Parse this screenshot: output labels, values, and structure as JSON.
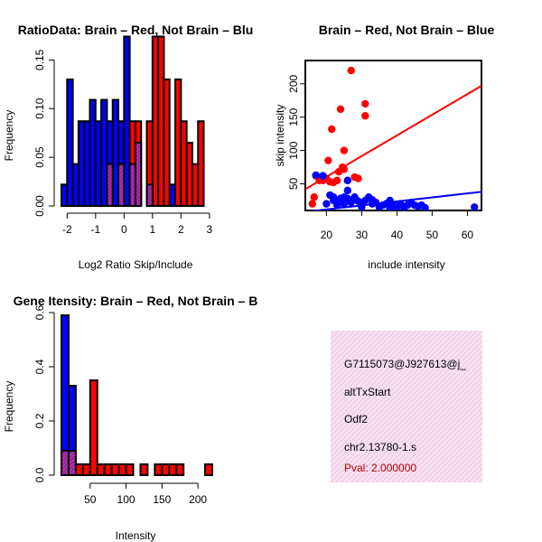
{
  "colors": {
    "brain": "#ff0000",
    "not_brain": "#0000ff",
    "overlap": "#9a1f9a",
    "panel_bg": "#f3d3ea"
  },
  "chart_data": [
    {
      "type": "bar",
      "title": "RatioData: Brain – Red, Not Brain – Blu",
      "xlabel": "Log2 Ratio Skip/Include",
      "ylabel": "Frequency",
      "xlim": [
        -2.2,
        3.1
      ],
      "ylim": [
        0,
        0.18
      ],
      "xticks": [
        "-2",
        "-1",
        "0",
        "1",
        "2",
        "3"
      ],
      "xtick_values": [
        -2,
        -1,
        0,
        1,
        2,
        3
      ],
      "yticks": [
        "0.00",
        "0.05",
        "0.10",
        "0.15"
      ],
      "ytick_values": [
        0,
        0.05,
        0.1,
        0.15
      ],
      "bin_width": 0.2,
      "series": [
        {
          "name": "Not Brain",
          "color": "blue",
          "bin_starts": [
            -2.2,
            -2.0,
            -1.8,
            -1.6,
            -1.4,
            -1.2,
            -1.0,
            -0.8,
            -0.6,
            -0.4,
            -0.2,
            0.0,
            0.2,
            0.4,
            1.6
          ],
          "values": [
            0.022,
            0.13,
            0.043,
            0.087,
            0.087,
            0.109,
            0.087,
            0.109,
            0.087,
            0.109,
            0.087,
            0.174,
            0.043,
            0.022,
            0.022
          ]
        },
        {
          "name": "Brain",
          "color": "red",
          "bin_starts": [
            -0.2,
            0.2,
            0.4,
            0.8,
            1.0,
            1.2,
            1.4,
            1.8,
            2.0,
            2.2,
            2.4,
            2.6
          ],
          "values": [
            0.022,
            0.087,
            0.087,
            0.087,
            0.174,
            0.174,
            0.13,
            0.13,
            0.087,
            0.065,
            0.043,
            0.087
          ]
        },
        {
          "name": "Overlap",
          "color": "purple",
          "bin_starts": [
            -0.6,
            -0.2,
            0.2,
            0.4,
            0.8
          ],
          "values": [
            0.043,
            0.043,
            0.043,
            0.065,
            0.022
          ]
        }
      ]
    },
    {
      "type": "scatter",
      "title": "Brain – Red, Not Brain – Blue",
      "xlabel": "include intensity",
      "ylabel": "skip intensity",
      "xlim": [
        14,
        64
      ],
      "ylim": [
        10,
        235
      ],
      "xticks": [
        "20",
        "30",
        "40",
        "50",
        "60"
      ],
      "xtick_values": [
        20,
        30,
        40,
        50,
        60
      ],
      "yticks": [
        "50",
        "100",
        "150",
        "200"
      ],
      "ytick_values": [
        50,
        100,
        150,
        200
      ],
      "series": [
        {
          "name": "Brain",
          "color": "red",
          "x": [
            16,
            17,
            19,
            20,
            20.5,
            21,
            21.5,
            22,
            23,
            23.5,
            24,
            24.5,
            25,
            25,
            26,
            27,
            28,
            29,
            31,
            31,
            16.5,
            18
          ],
          "y": [
            20,
            62,
            55,
            58,
            85,
            53,
            132,
            52,
            55,
            68,
            162,
            75,
            100,
            72,
            55,
            220,
            60,
            58,
            170,
            152,
            30,
            55
          ],
          "fit": [
            [
              14,
              42
            ],
            [
              64,
              197
            ]
          ]
        },
        {
          "name": "Not Brain",
          "color": "blue",
          "x": [
            17,
            19,
            20,
            21,
            22,
            22,
            23,
            24,
            25,
            25,
            26,
            26,
            27,
            28,
            29,
            30,
            31,
            32,
            33,
            34,
            35,
            36,
            37,
            38,
            38,
            39,
            40,
            41,
            42,
            43,
            44,
            45,
            46,
            47,
            48,
            62,
            26,
            24,
            30,
            33
          ],
          "y": [
            63,
            62,
            20,
            33,
            25,
            30,
            18,
            28,
            30,
            20,
            40,
            55,
            22,
            30,
            24,
            18,
            25,
            30,
            20,
            22,
            15,
            18,
            20,
            12,
            25,
            18,
            15,
            20,
            14,
            18,
            22,
            18,
            16,
            18,
            14,
            15,
            28,
            22,
            15,
            26
          ],
          "fit": [
            [
              14,
              8
            ],
            [
              64,
              38
            ]
          ]
        }
      ]
    },
    {
      "type": "bar",
      "title": "Gene Itensity: Brain – Red, Not Brain – B",
      "xlabel": "Intensity",
      "ylabel": "Frequency",
      "xlim": [
        10,
        220
      ],
      "ylim": [
        0,
        0.64
      ],
      "xticks": [
        "50",
        "100",
        "150",
        "200"
      ],
      "xtick_values": [
        50,
        100,
        150,
        200
      ],
      "yticks": [
        "0.0",
        "0.2",
        "0.4",
        "0.6"
      ],
      "ytick_values": [
        0,
        0.2,
        0.4,
        0.6
      ],
      "bin_width": 10,
      "series": [
        {
          "name": "Not Brain",
          "color": "blue",
          "bin_starts": [
            10,
            20,
            30,
            40
          ],
          "values": [
            0.59,
            0.33,
            0.04,
            0.04
          ]
        },
        {
          "name": "Brain",
          "color": "red",
          "bin_starts": [
            30,
            40,
            50,
            60,
            70,
            80,
            90,
            100,
            120,
            140,
            150,
            160,
            170,
            210
          ],
          "values": [
            0.04,
            0.04,
            0.35,
            0.04,
            0.04,
            0.04,
            0.04,
            0.04,
            0.04,
            0.04,
            0.04,
            0.04,
            0.04,
            0.04
          ]
        },
        {
          "name": "Overlap",
          "color": "purple",
          "bin_starts": [
            10,
            20
          ],
          "values": [
            0.09,
            0.09
          ]
        }
      ]
    }
  ],
  "info": {
    "line1": "G7115073@J927613@j_",
    "line2": "altTxStart",
    "line3": "Odf2",
    "line4": "chr2.13780-1.s",
    "line5": "Pval: 2.000000"
  }
}
